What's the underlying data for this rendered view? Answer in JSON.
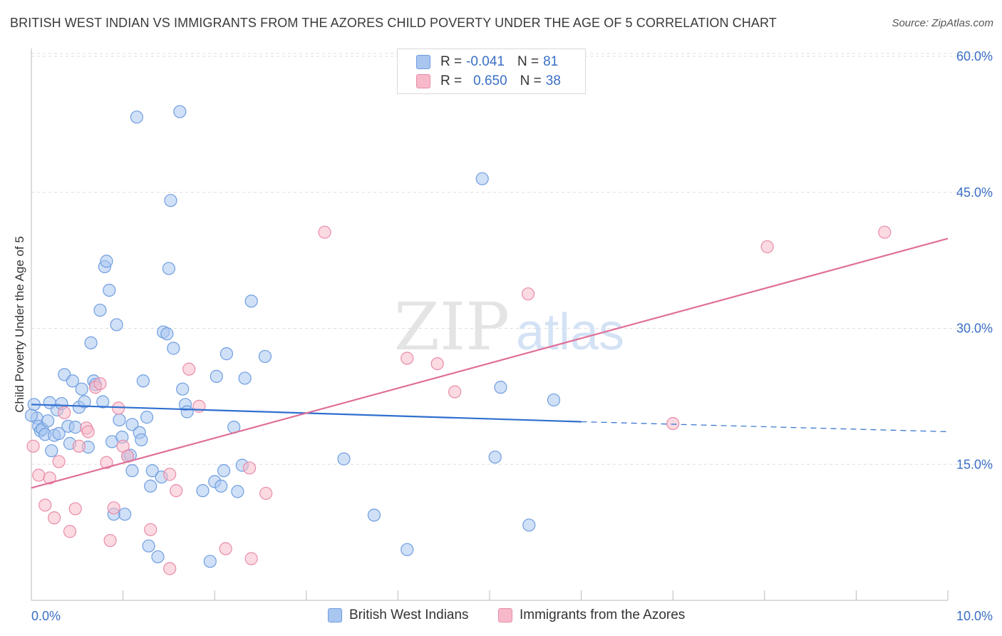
{
  "header": {
    "title": "BRITISH WEST INDIAN VS IMMIGRANTS FROM THE AZORES CHILD POVERTY UNDER THE AGE OF 5 CORRELATION CHART",
    "source": "Source: ZipAtlas.com"
  },
  "watermark": {
    "zip": "ZIP",
    "atlas": "atlas"
  },
  "legend": {
    "rows": [
      {
        "r_label": "R =",
        "r_value": "-0.041",
        "n_label": "N =",
        "n_value": "81",
        "color": "#a9c6f0",
        "border": "#6e9be0"
      },
      {
        "r_label": "R =",
        "r_value": "0.650",
        "n_label": "N =",
        "n_value": "38",
        "color": "#f7b9ca",
        "border": "#e68aa6"
      }
    ]
  },
  "colors": {
    "blue_fill": "#a9c6f0",
    "blue_stroke": "#6f9ee0",
    "blue_line": "#2f6fcf",
    "pink_fill": "#f7bccb",
    "pink_stroke": "#e98ca8",
    "pink_line": "#e06f98",
    "grid": "#dddddd",
    "tick_label": "#3a6fc4"
  },
  "chart_data": {
    "type": "scatter",
    "title": "BRITISH WEST INDIAN VS IMMIGRANTS FROM THE AZORES CHILD POVERTY UNDER THE AGE OF 5 CORRELATION CHART",
    "xlabel": "",
    "ylabel": "Child Poverty Under the Age of 5",
    "xlim": [
      0,
      10
    ],
    "ylim": [
      0,
      60
    ],
    "x_tick_labels": [
      "0.0%",
      "10.0%"
    ],
    "y_ticks": [
      15,
      30,
      45,
      60
    ],
    "y_tick_labels": [
      "15.0%",
      "30.0%",
      "45.0%",
      "60.0%"
    ],
    "grid": "horizontal dashed",
    "legend_position": "top-center",
    "series": [
      {
        "name": "British West Indians",
        "color": "#a9c6f0",
        "points": [
          [
            0.03,
            21.6
          ],
          [
            0.06,
            20.1
          ],
          [
            0.08,
            19.2
          ],
          [
            0.1,
            18.7
          ],
          [
            0.12,
            18.9
          ],
          [
            0.15,
            18.3
          ],
          [
            0.18,
            19.8
          ],
          [
            0.2,
            21.8
          ],
          [
            0.22,
            16.5
          ],
          [
            0.25,
            18.2
          ],
          [
            0.28,
            21.0
          ],
          [
            0.3,
            18.4
          ],
          [
            0.33,
            21.7
          ],
          [
            0.36,
            24.9
          ],
          [
            0.4,
            19.2
          ],
          [
            0.42,
            17.3
          ],
          [
            0.45,
            24.2
          ],
          [
            0.48,
            19.1
          ],
          [
            0.52,
            21.3
          ],
          [
            0.55,
            23.3
          ],
          [
            0.58,
            21.9
          ],
          [
            0.62,
            16.9
          ],
          [
            0.65,
            28.4
          ],
          [
            0.68,
            24.2
          ],
          [
            0.7,
            23.8
          ],
          [
            0.75,
            32.0
          ],
          [
            0.78,
            21.9
          ],
          [
            0.8,
            36.8
          ],
          [
            0.82,
            37.4
          ],
          [
            0.85,
            34.2
          ],
          [
            0.88,
            17.5
          ],
          [
            0.9,
            9.5
          ],
          [
            0.93,
            30.4
          ],
          [
            0.96,
            19.9
          ],
          [
            0.99,
            18.0
          ],
          [
            1.02,
            9.5
          ],
          [
            1.05,
            15.9
          ],
          [
            1.08,
            16.0
          ],
          [
            1.1,
            19.4
          ],
          [
            1.1,
            14.3
          ],
          [
            1.15,
            53.3
          ],
          [
            1.18,
            18.5
          ],
          [
            1.2,
            17.7
          ],
          [
            1.22,
            24.2
          ],
          [
            1.26,
            20.2
          ],
          [
            1.28,
            6.0
          ],
          [
            1.3,
            12.6
          ],
          [
            1.32,
            14.3
          ],
          [
            1.38,
            4.8
          ],
          [
            1.42,
            13.6
          ],
          [
            1.44,
            29.6
          ],
          [
            1.48,
            29.4
          ],
          [
            1.5,
            36.6
          ],
          [
            1.52,
            44.1
          ],
          [
            1.55,
            27.8
          ],
          [
            1.62,
            53.9
          ],
          [
            1.65,
            23.3
          ],
          [
            1.68,
            21.6
          ],
          [
            1.7,
            20.8
          ],
          [
            1.87,
            12.1
          ],
          [
            1.95,
            4.3
          ],
          [
            2.0,
            13.1
          ],
          [
            2.02,
            24.7
          ],
          [
            2.07,
            12.6
          ],
          [
            2.1,
            14.3
          ],
          [
            2.13,
            27.2
          ],
          [
            2.21,
            19.1
          ],
          [
            2.25,
            12.0
          ],
          [
            2.3,
            14.9
          ],
          [
            2.33,
            24.5
          ],
          [
            2.4,
            33.0
          ],
          [
            2.55,
            26.9
          ],
          [
            3.41,
            15.6
          ],
          [
            3.74,
            9.4
          ],
          [
            4.1,
            5.6
          ],
          [
            4.92,
            46.5
          ],
          [
            5.06,
            15.8
          ],
          [
            5.12,
            23.5
          ],
          [
            5.43,
            8.3
          ],
          [
            5.7,
            22.1
          ],
          [
            0.0,
            20.4
          ]
        ]
      },
      {
        "name": "Immigrants from the Azores",
        "color": "#f7bccb",
        "points": [
          [
            0.02,
            17.0
          ],
          [
            0.08,
            13.8
          ],
          [
            0.15,
            10.5
          ],
          [
            0.2,
            13.5
          ],
          [
            0.25,
            9.1
          ],
          [
            0.3,
            15.3
          ],
          [
            0.36,
            20.7
          ],
          [
            0.42,
            7.6
          ],
          [
            0.48,
            10.1
          ],
          [
            0.52,
            17.0
          ],
          [
            0.6,
            19.0
          ],
          [
            0.62,
            18.6
          ],
          [
            0.7,
            23.5
          ],
          [
            0.75,
            23.9
          ],
          [
            0.82,
            15.2
          ],
          [
            0.86,
            6.6
          ],
          [
            0.9,
            10.2
          ],
          [
            0.95,
            21.2
          ],
          [
            1.0,
            17.0
          ],
          [
            1.05,
            15.9
          ],
          [
            1.3,
            7.8
          ],
          [
            1.51,
            13.9
          ],
          [
            1.58,
            12.1
          ],
          [
            1.51,
            3.5
          ],
          [
            1.72,
            25.5
          ],
          [
            1.83,
            21.4
          ],
          [
            2.12,
            5.7
          ],
          [
            2.38,
            14.6
          ],
          [
            2.4,
            4.6
          ],
          [
            2.56,
            11.8
          ],
          [
            3.2,
            40.6
          ],
          [
            4.1,
            26.7
          ],
          [
            4.43,
            26.1
          ],
          [
            4.62,
            23.0
          ],
          [
            5.42,
            33.8
          ],
          [
            7.0,
            19.5
          ],
          [
            8.03,
            39.0
          ],
          [
            9.31,
            40.6
          ]
        ]
      }
    ],
    "trend_lines": [
      {
        "series": "British West Indians",
        "x": [
          0.0,
          6.0
        ],
        "y": [
          21.6,
          19.7
        ],
        "dashed_extension_to_x": 10.0,
        "dashed_extension_y": 18.6
      },
      {
        "series": "Immigrants from the Azores",
        "x": [
          0.0,
          10.0
        ],
        "y": [
          12.4,
          39.9
        ]
      }
    ]
  },
  "bottom_legend": {
    "items": [
      {
        "label": "British West Indians"
      },
      {
        "label": "Immigrants from the Azores"
      }
    ]
  }
}
